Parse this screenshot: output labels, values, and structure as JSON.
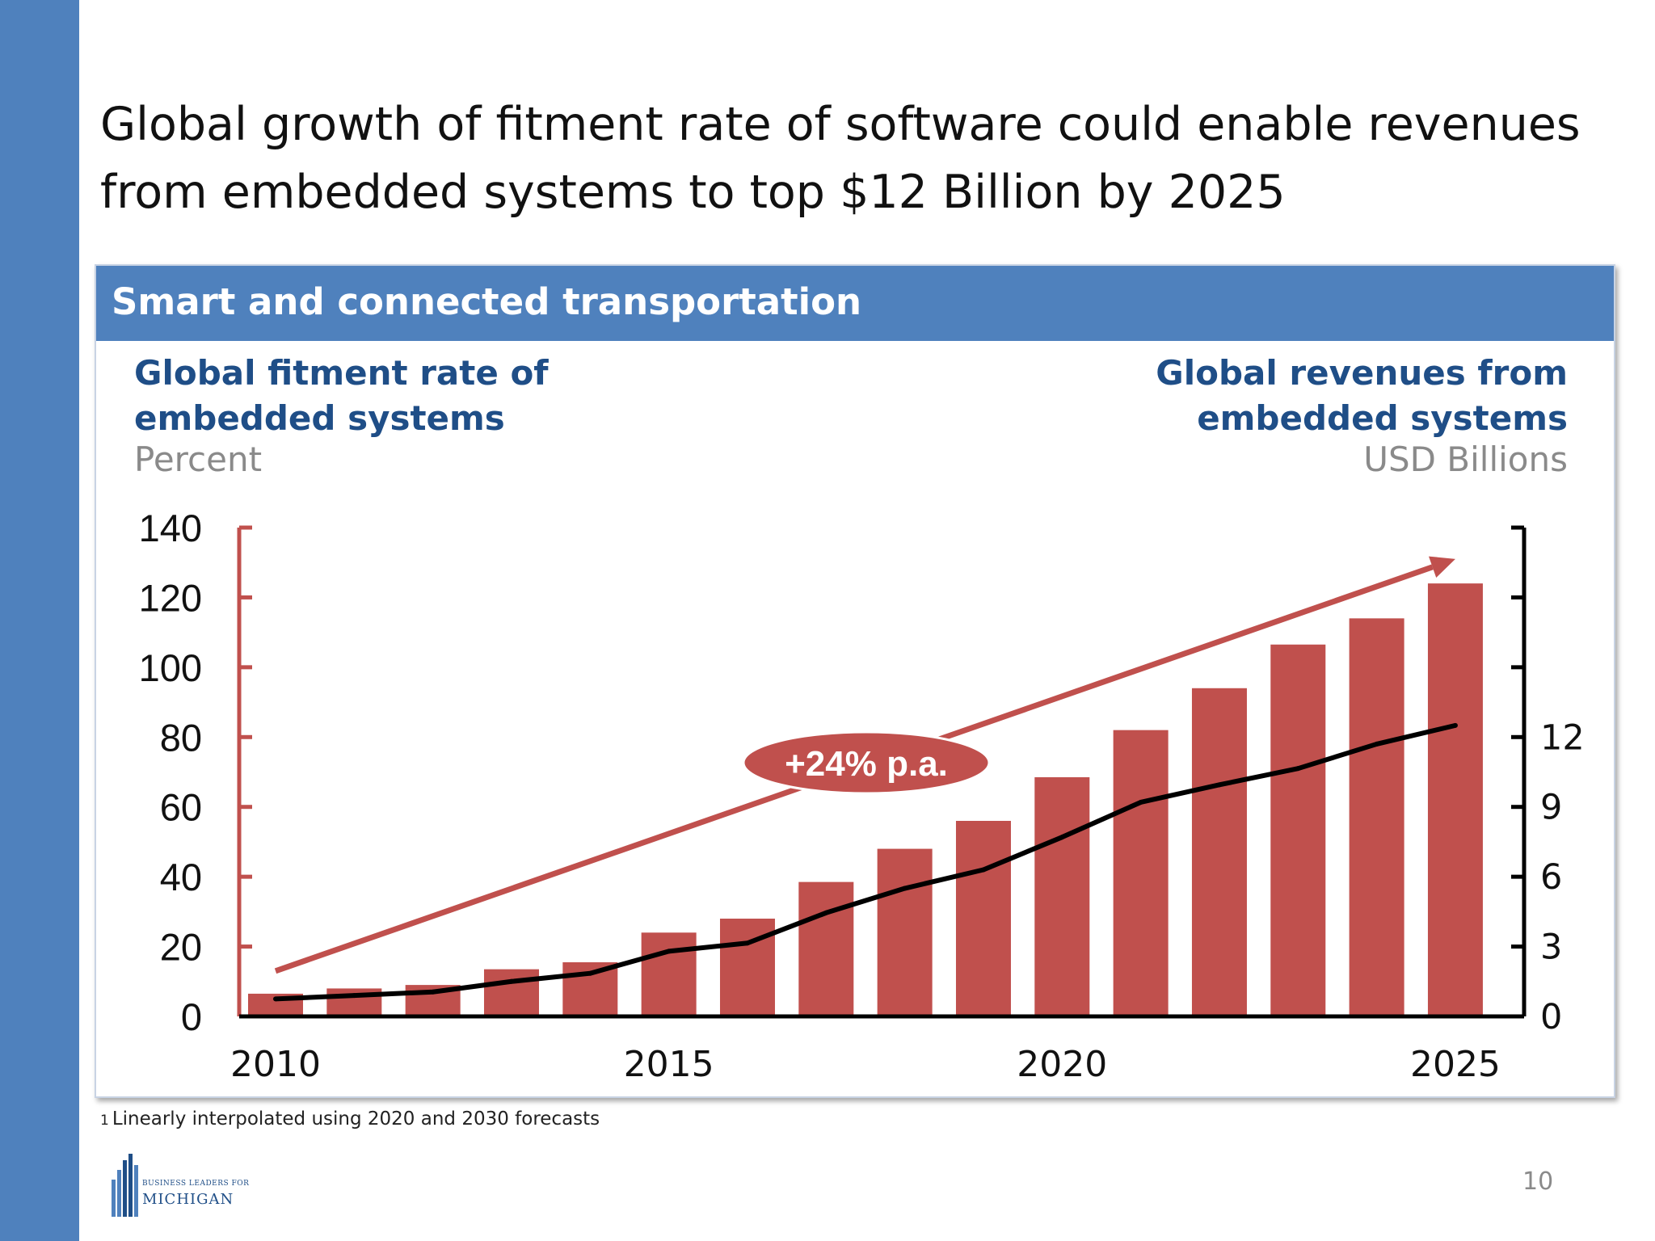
{
  "slide": {
    "title_line1": "Global growth of fitment rate of software could enable revenues",
    "title_line2": "from embedded systems to top $12 Billion by 2025",
    "panel_title": "Smart and connected transportation",
    "footnote_marker": "1",
    "footnote": "Linearly interpolated using 2020 and 2030 forecasts",
    "logo_line1": "BUSINESS LEADERS FOR",
    "logo_line2": "MICHIGAN",
    "page_number": "10"
  },
  "colors": {
    "accent_blue": "#4f81bd",
    "bar_red": "#c0504d",
    "revenue_line": "#000000",
    "axis_title": "#1f4e87"
  },
  "chart_data": {
    "type": "bar",
    "left_axis": {
      "title_line1": "Global fitment rate of",
      "title_line2": "embedded systems",
      "unit": "Percent",
      "ylim": [
        0,
        140
      ],
      "ticks": [
        "0",
        "20",
        "40",
        "60",
        "80",
        "100",
        "120",
        "140"
      ]
    },
    "right_axis": {
      "title_line1": "Global revenues from",
      "title_line2": "embedded systems",
      "unit": "USD Billions",
      "ylim": [
        0,
        21
      ],
      "ticks": [
        "0",
        "3",
        "6",
        "9",
        "12"
      ]
    },
    "x": [
      2010,
      2011,
      2012,
      2013,
      2014,
      2015,
      2016,
      2017,
      2018,
      2019,
      2020,
      2021,
      2022,
      2023,
      2024,
      2025
    ],
    "x_tick_labels": [
      "2010",
      "2015",
      "2020",
      "2025"
    ],
    "series": [
      {
        "type": "bar",
        "axis": "left",
        "values": [
          6.5,
          8,
          9,
          13.5,
          15.5,
          24,
          28,
          38.5,
          48,
          56,
          68.5,
          82,
          94,
          106.5,
          114,
          124
        ]
      },
      {
        "type": "line",
        "axis": "right",
        "values": [
          0.75,
          0.9,
          1.05,
          1.5,
          1.85,
          2.8,
          3.15,
          4.45,
          5.5,
          6.3,
          7.7,
          9.2,
          9.95,
          10.65,
          11.7,
          12.5
        ]
      }
    ],
    "annotation": {
      "label": "+24% p.a.",
      "trend_arrow_from": [
        2010,
        13
      ],
      "trend_arrow_to": [
        2025,
        131
      ]
    },
    "grid": false,
    "legend": "none"
  }
}
